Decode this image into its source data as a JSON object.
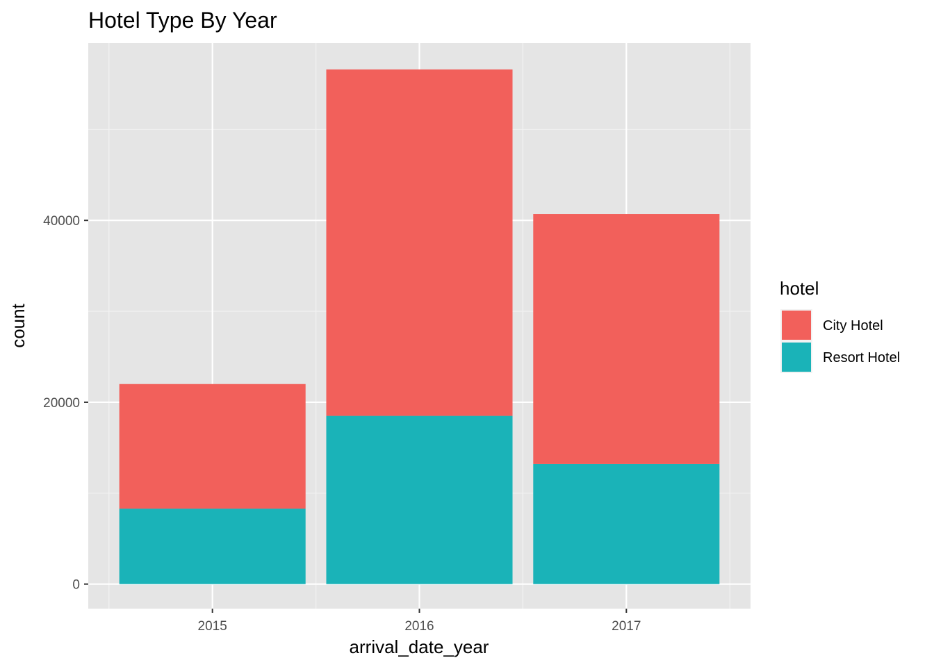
{
  "chart_data": {
    "type": "bar",
    "stacked": true,
    "title": "Hotel Type By Year",
    "xlabel": "arrival_date_year",
    "ylabel": "count",
    "categories": [
      "2015",
      "2016",
      "2017"
    ],
    "series": [
      {
        "name": "Resort Hotel",
        "color": "#1ab3b8",
        "values": [
          8300,
          18500,
          13200
        ]
      },
      {
        "name": "City Hotel",
        "color": "#f2605b",
        "values": [
          13700,
          38100,
          27500
        ]
      }
    ],
    "yticks": [
      0,
      20000,
      40000
    ],
    "ytick_labels": [
      "0",
      "20000",
      "40000"
    ],
    "ylim": [
      -2700,
      59500
    ],
    "grid": true,
    "legend": {
      "title": "hotel",
      "position": "right",
      "order": [
        "City Hotel",
        "Resort Hotel"
      ]
    },
    "panel_background": "#e5e5e5"
  }
}
